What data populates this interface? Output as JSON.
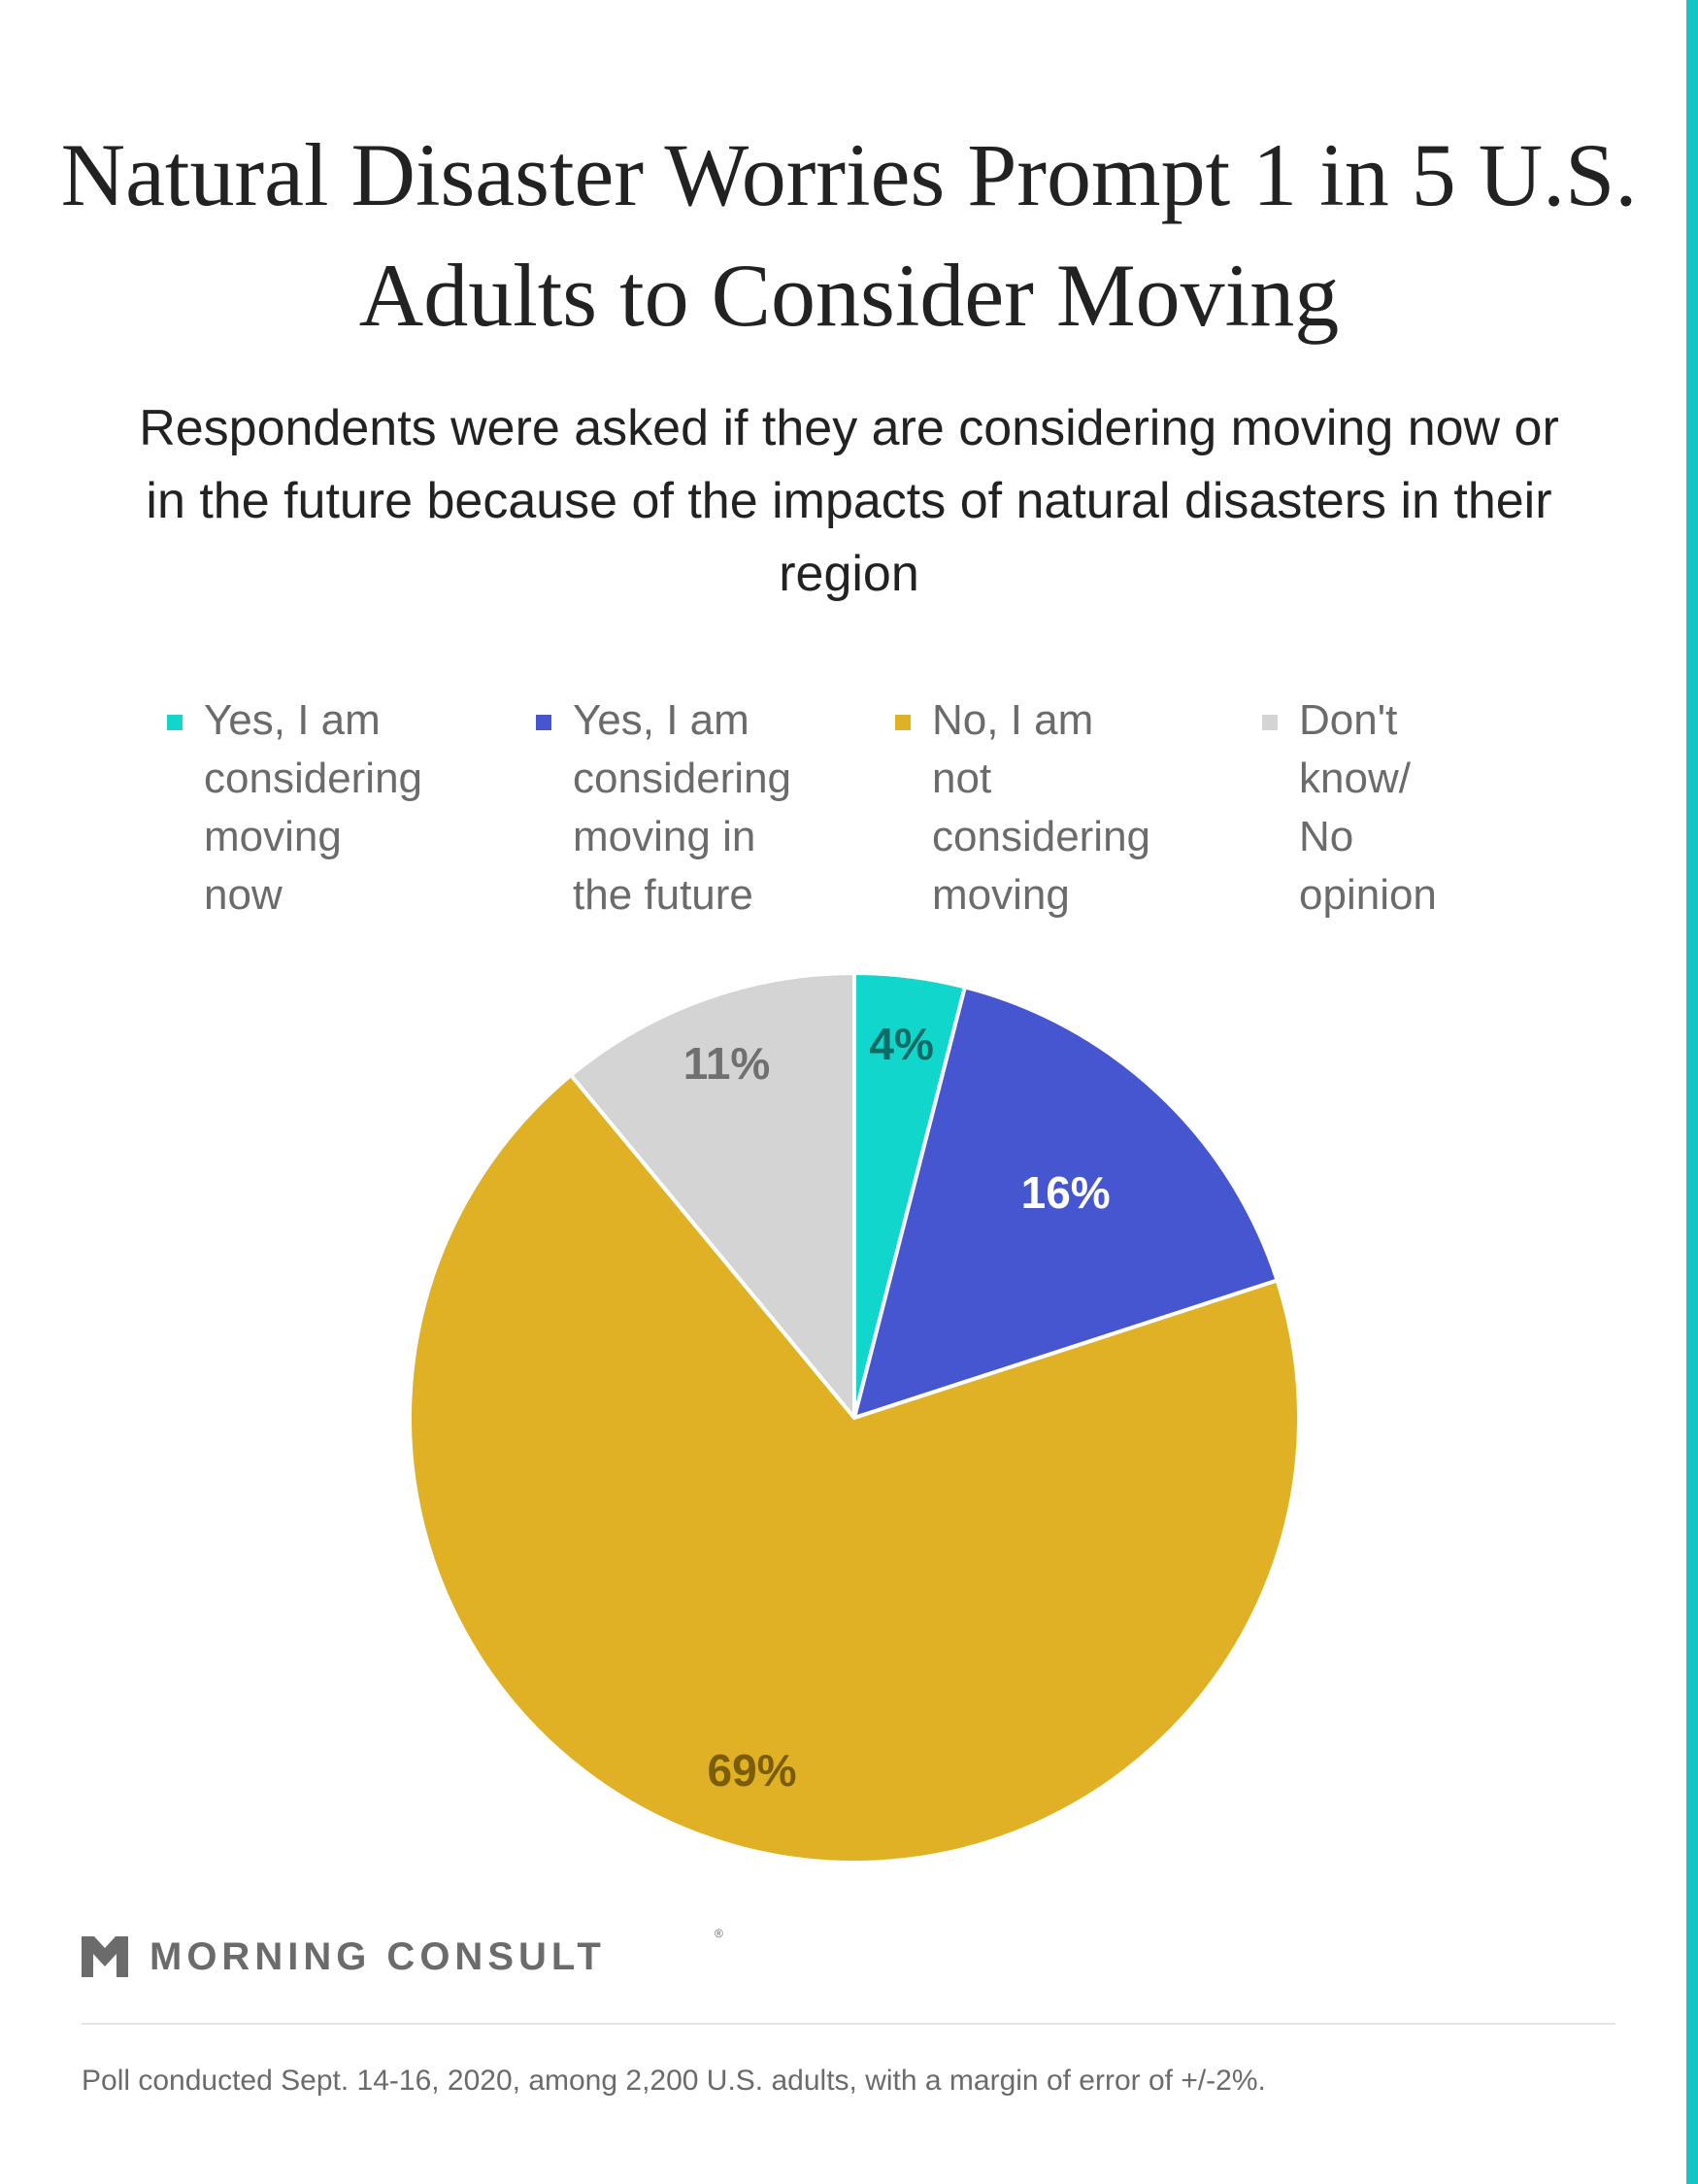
{
  "title": "Natural Disaster Worries Prompt 1 in 5 U.S. Adults to Consider Moving",
  "subtitle": "Respondents were asked if they are considering moving now or in the future because of the impacts of natural disasters in their region",
  "colors": {
    "accent": "#13c6c5",
    "now": "#11d6cc",
    "future": "#4556d0",
    "not": "#e0b125",
    "dont_know": "#d4d4d4"
  },
  "chart_data": {
    "type": "pie",
    "title": "Natural Disaster Worries Prompt 1 in 5 U.S. Adults to Consider Moving",
    "categories": [
      "Yes, I am considering moving now",
      "Yes, I am considering moving in the future",
      "No, I am not considering moving",
      "Don't know/ No opinion"
    ],
    "values": [
      4,
      16,
      69,
      11
    ],
    "data_labels": [
      "4%",
      "16%",
      "69%",
      "11%"
    ],
    "unit": "%",
    "legend_position": "top",
    "start_angle": "12 o'clock",
    "direction": "clockwise"
  },
  "legend": {
    "items": [
      {
        "label": "Yes, I am\nconsidering\nmoving now",
        "color": "#11d6cc"
      },
      {
        "label": "Yes, I am\nconsidering\nmoving in\nthe future",
        "color": "#4556d0"
      },
      {
        "label": "No, I am not\nconsidering\nmoving",
        "color": "#e0b125"
      },
      {
        "label": "Don't know/\nNo opinion",
        "color": "#d4d4d4"
      }
    ]
  },
  "brand": {
    "name": "MORNING CONSULT",
    "registered_mark": "®",
    "logo_icon": "morning-consult-chevron-icon"
  },
  "footnote": "Poll conducted Sept. 14-16, 2020, among 2,200 U.S. adults, with a margin of error of +/-2%."
}
